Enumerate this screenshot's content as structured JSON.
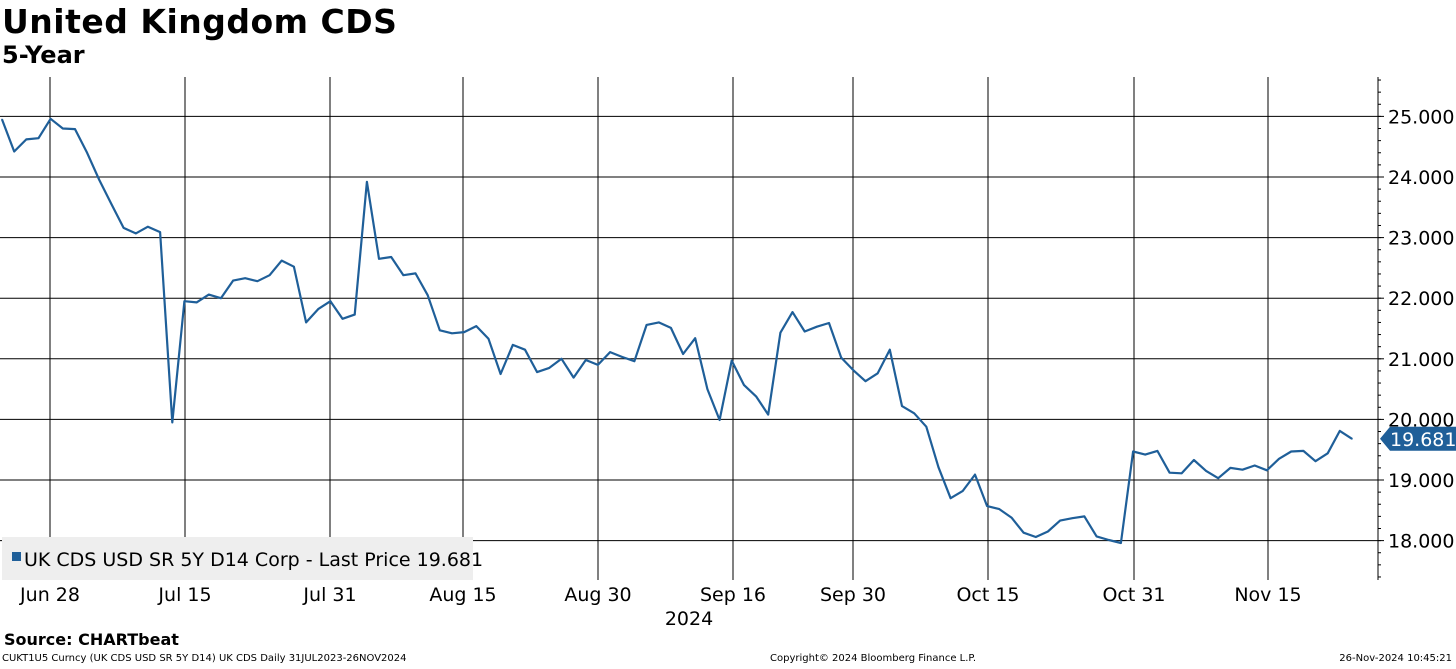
{
  "header": {
    "title": "United Kingdom CDS",
    "subtitle": "5-Year"
  },
  "footer": {
    "source": "Source: CHARTbeat",
    "ticker_info": "CUKT1U5 Curncy (UK CDS USD SR 5Y D14) UK CDS  Daily 31JUL2023-26NOV2024",
    "copyright": "Copyright© 2024 Bloomberg Finance L.P.",
    "timestamp": "26-Nov-2024 10:45:21"
  },
  "chart_data": {
    "type": "line",
    "title": "United Kingdom CDS",
    "subtitle": "5-Year",
    "x_year_label": "2024",
    "x_ticks": [
      "Jun 28",
      "Jul 15",
      "Jul 31",
      "Aug 15",
      "Aug 30",
      "Sep 16",
      "Sep 30",
      "Oct 15",
      "Oct 31",
      "Nov 15"
    ],
    "y_ticks": [
      "18.000",
      "19.000",
      "20.000",
      "21.000",
      "22.000",
      "23.000",
      "24.000",
      "25.000"
    ],
    "ylim": [
      17.35,
      25.65
    ],
    "grid": true,
    "y_axis_side": "right",
    "legend": {
      "position": "bottom-left",
      "text": "UK CDS USD SR 5Y D14 Corp - Last Price 19.681"
    },
    "last_value_label": "19.681",
    "line_color": "#1f5f99",
    "series": [
      {
        "name": "UK CDS USD SR 5Y D14 Corp - Last Price",
        "values": [
          24.95,
          24.42,
          24.62,
          24.64,
          24.96,
          24.8,
          24.79,
          24.4,
          23.95,
          23.55,
          23.16,
          23.07,
          23.18,
          23.09,
          19.95,
          21.95,
          21.93,
          22.06,
          22.0,
          22.29,
          22.33,
          22.28,
          22.38,
          22.62,
          22.52,
          21.6,
          21.82,
          21.95,
          21.66,
          21.73,
          23.92,
          22.65,
          22.68,
          22.38,
          22.41,
          22.05,
          21.47,
          21.42,
          21.44,
          21.54,
          21.33,
          20.75,
          21.23,
          21.15,
          20.78,
          20.85,
          21.0,
          20.69,
          20.98,
          20.9,
          21.11,
          21.03,
          20.96,
          21.56,
          21.6,
          21.51,
          21.08,
          21.34,
          20.5,
          19.99,
          20.97,
          20.57,
          20.38,
          20.08,
          21.43,
          21.77,
          21.45,
          21.53,
          21.59,
          21.02,
          20.81,
          20.63,
          20.76,
          21.15,
          20.22,
          20.1,
          19.88,
          19.21,
          18.7,
          18.82,
          19.09,
          18.57,
          18.52,
          18.38,
          18.13,
          18.06,
          18.15,
          18.33,
          18.37,
          18.4,
          18.07,
          18.01,
          17.96,
          19.47,
          19.42,
          19.48,
          19.12,
          19.11,
          19.33,
          19.15,
          19.03,
          19.2,
          19.17,
          19.24,
          19.16,
          19.35,
          19.47,
          19.48,
          19.31,
          19.44,
          19.81,
          19.68
        ]
      }
    ]
  }
}
